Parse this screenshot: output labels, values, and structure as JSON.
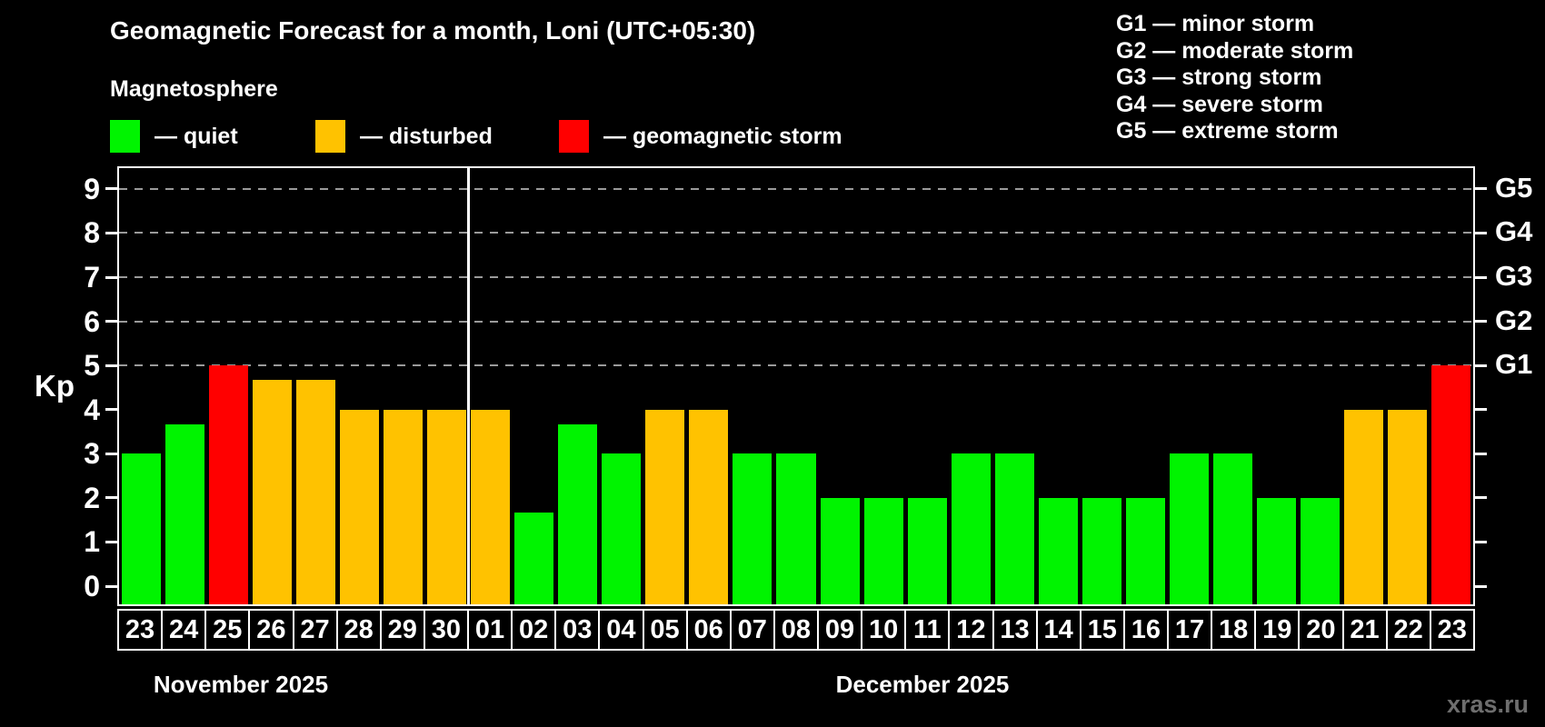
{
  "title": "Geomagnetic Forecast for a month, Loni (UTC+05:30)",
  "subtitle": "Magnetosphere",
  "legend": {
    "quiet_label": "— quiet",
    "disturbed_label": "— disturbed",
    "storm_label": "— geomagnetic storm"
  },
  "g_legend": [
    "G1 — minor storm",
    "G2 — moderate storm",
    "G3 — strong storm",
    "G4 — severe storm",
    "G5 — extreme storm"
  ],
  "watermark": "xras.ru",
  "colors": {
    "quiet": "#00f400",
    "disturbed": "#ffc200",
    "storm": "#ff0000",
    "grid": "#9a9a9a",
    "axis": "#ffffff",
    "watermark": "#6e6e6e"
  },
  "chart_data": {
    "type": "bar",
    "title": "Geomagnetic Forecast for a month, Loni (UTC+05:30)",
    "subtitle": "Magnetosphere",
    "ylabel": "Kp",
    "ylim": [
      0,
      9
    ],
    "grid_values": [
      5,
      6,
      7,
      8,
      9
    ],
    "y_ticks": [
      0,
      1,
      2,
      3,
      4,
      5,
      6,
      7,
      8,
      9
    ],
    "right_axis": [
      {
        "value": 5,
        "label": "G1"
      },
      {
        "value": 6,
        "label": "G2"
      },
      {
        "value": 7,
        "label": "G3"
      },
      {
        "value": 8,
        "label": "G4"
      },
      {
        "value": 9,
        "label": "G5"
      }
    ],
    "categories": [
      "23",
      "24",
      "25",
      "26",
      "27",
      "28",
      "29",
      "30",
      "01",
      "02",
      "03",
      "04",
      "05",
      "06",
      "07",
      "08",
      "09",
      "10",
      "11",
      "12",
      "13",
      "14",
      "15",
      "16",
      "17",
      "18",
      "19",
      "20",
      "21",
      "22",
      "23"
    ],
    "values": [
      3,
      3.67,
      5,
      4.67,
      4.67,
      4,
      4,
      4,
      4,
      1.67,
      3.67,
      3,
      4,
      4,
      3,
      3,
      2,
      2,
      2,
      3,
      3,
      2,
      2,
      2,
      3,
      3,
      2,
      2,
      4,
      4,
      5
    ],
    "states": [
      "quiet",
      "quiet",
      "storm",
      "disturbed",
      "disturbed",
      "disturbed",
      "disturbed",
      "disturbed",
      "disturbed",
      "quiet",
      "quiet",
      "quiet",
      "disturbed",
      "disturbed",
      "quiet",
      "quiet",
      "quiet",
      "quiet",
      "quiet",
      "quiet",
      "quiet",
      "quiet",
      "quiet",
      "quiet",
      "quiet",
      "quiet",
      "quiet",
      "quiet",
      "disturbed",
      "disturbed",
      "storm"
    ],
    "months": [
      {
        "label": "November 2025",
        "days": 8
      },
      {
        "label": "December 2025",
        "days": 23
      }
    ],
    "legend_position": "top-right",
    "grid": "dashed-horizontal-on-storm-levels"
  }
}
